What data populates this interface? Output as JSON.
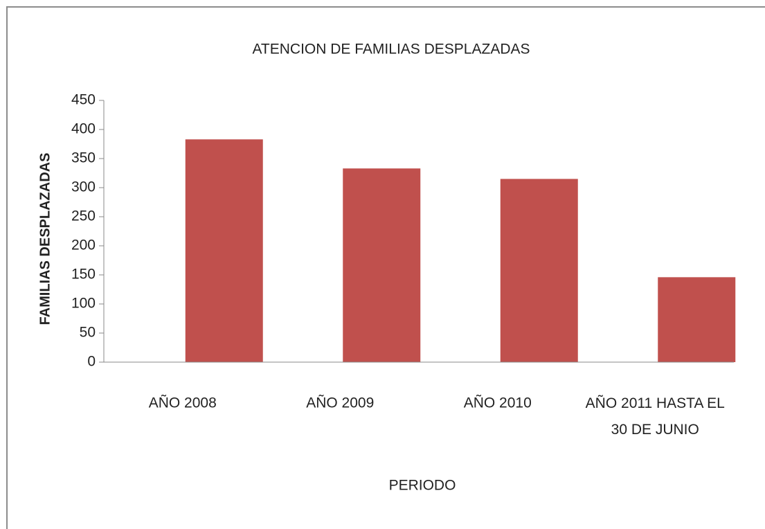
{
  "chart_data": {
    "type": "bar",
    "title": "ATENCION DE FAMILIAS DESPLAZADAS",
    "x_label": "PERIODO",
    "y_label": "FAMILIAS DESPLAZADAS",
    "categories": [
      "AÑO 2008",
      "AÑO 2009",
      "AÑO 2010",
      "AÑO 2011 HASTA EL 30 DE JUNIO"
    ],
    "values": [
      383,
      333,
      315,
      146
    ],
    "color": "#c0504d",
    "ylim": [
      0,
      450
    ],
    "yticks": [
      0,
      50,
      100,
      150,
      200,
      250,
      300,
      350,
      400,
      450
    ],
    "grid": false
  }
}
